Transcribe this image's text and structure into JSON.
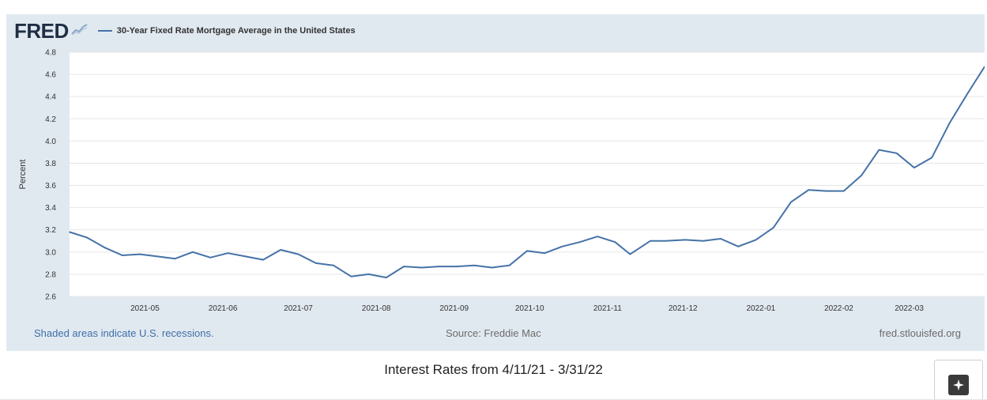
{
  "header": {
    "logo_text": "FRED",
    "series_title": "30-Year Fixed Rate Mortgage Average in the United States"
  },
  "footer": {
    "recessions_note": "Shaded areas indicate U.S. recessions.",
    "source": "Source: Freddie Mac",
    "site": "fred.stlouisfed.org"
  },
  "caption": "Interest Rates from 4/11/21 - 3/31/22",
  "colors": {
    "line": "#4572a7",
    "panel": "#e1e9f0",
    "plot_bg": "#ffffff",
    "logo": "#1f2e43",
    "note_link": "#3f6fa8"
  },
  "icons": {
    "logo_mark": "fred-graph-icon",
    "corner_button": "sparkle-icon"
  },
  "chart_data": {
    "type": "line",
    "title": "30-Year Fixed Rate Mortgage Average in the United States",
    "xlabel": "",
    "ylabel": "Percent",
    "ylim": [
      2.6,
      4.8
    ],
    "yticks": [
      "2.6",
      "2.8",
      "3.0",
      "3.2",
      "3.4",
      "3.6",
      "3.8",
      "4.0",
      "4.2",
      "4.4",
      "4.6",
      "4.8"
    ],
    "xticks": [
      "2021-05",
      "2021-06",
      "2021-07",
      "2021-08",
      "2021-09",
      "2021-10",
      "2021-11",
      "2021-12",
      "2022-01",
      "2022-02",
      "2022-03"
    ],
    "xtick_dates": [
      "2021-05-01",
      "2021-06-01",
      "2021-07-01",
      "2021-08-01",
      "2021-09-01",
      "2021-10-01",
      "2021-11-01",
      "2021-12-01",
      "2022-01-01",
      "2022-02-01",
      "2022-03-01"
    ],
    "xlim": [
      "2021-04-01",
      "2022-03-31"
    ],
    "grid": true,
    "legend": "top-left",
    "series": [
      {
        "name": "30-Year Fixed Rate Mortgage Average in the United States",
        "x": [
          "2021-04-01",
          "2021-04-08",
          "2021-04-15",
          "2021-04-22",
          "2021-04-29",
          "2021-05-06",
          "2021-05-13",
          "2021-05-20",
          "2021-05-27",
          "2021-06-03",
          "2021-06-10",
          "2021-06-17",
          "2021-06-24",
          "2021-07-01",
          "2021-07-08",
          "2021-07-15",
          "2021-07-22",
          "2021-07-29",
          "2021-08-05",
          "2021-08-12",
          "2021-08-19",
          "2021-08-26",
          "2021-09-02",
          "2021-09-09",
          "2021-09-16",
          "2021-09-23",
          "2021-09-30",
          "2021-10-07",
          "2021-10-14",
          "2021-10-21",
          "2021-10-28",
          "2021-11-04",
          "2021-11-10",
          "2021-11-18",
          "2021-11-24",
          "2021-12-02",
          "2021-12-09",
          "2021-12-16",
          "2021-12-23",
          "2021-12-30",
          "2022-01-06",
          "2022-01-13",
          "2022-01-20",
          "2022-01-27",
          "2022-02-03",
          "2022-02-10",
          "2022-02-17",
          "2022-02-24",
          "2022-03-03",
          "2022-03-10",
          "2022-03-17",
          "2022-03-24",
          "2022-03-31"
        ],
        "values": [
          3.18,
          3.13,
          3.04,
          2.97,
          2.98,
          2.96,
          2.94,
          3.0,
          2.95,
          2.99,
          2.96,
          2.93,
          3.02,
          2.98,
          2.9,
          2.88,
          2.78,
          2.8,
          2.77,
          2.87,
          2.86,
          2.87,
          2.87,
          2.88,
          2.86,
          2.88,
          3.01,
          2.99,
          3.05,
          3.09,
          3.14,
          3.09,
          2.98,
          3.1,
          3.1,
          3.11,
          3.1,
          3.12,
          3.05,
          3.11,
          3.22,
          3.45,
          3.56,
          3.55,
          3.55,
          3.69,
          3.92,
          3.89,
          3.76,
          3.85,
          4.16,
          4.42,
          4.67
        ]
      }
    ]
  }
}
